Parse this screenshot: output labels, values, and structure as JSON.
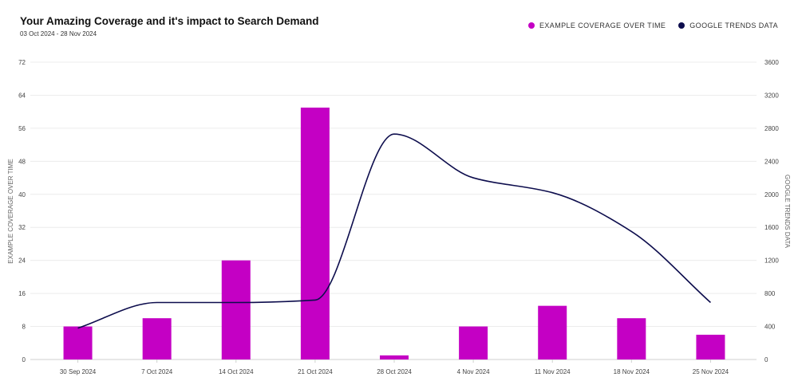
{
  "chart_data": {
    "type": "bar",
    "title": "Your Amazing Coverage and it's impact to Search Demand",
    "subtitle": "03 Oct 2024 - 28 Nov 2024",
    "categories": [
      "30 Sep 2024",
      "7 Oct 2024",
      "14 Oct 2024",
      "21 Oct 2024",
      "28 Oct 2024",
      "4 Nov 2024",
      "11 Nov 2024",
      "18 Nov 2024",
      "25 Nov 2024"
    ],
    "series": [
      {
        "name": "EXAMPLE COVERAGE OVER TIME",
        "type": "bar",
        "axis": "left",
        "color": "#c400c4",
        "values": [
          8,
          10,
          24,
          61,
          1,
          8,
          13,
          10,
          6
        ]
      },
      {
        "name": "GOOGLE TRENDS DATA",
        "type": "line",
        "axis": "right",
        "color": "#0d0d4d",
        "values": [
          380,
          690,
          690,
          720,
          2730,
          2200,
          2020,
          1550,
          690
        ]
      }
    ],
    "ylabel_left": "EXAMPLE COVERAGE OVER TIME",
    "ylabel_right": "GOOGLE TRENDS DATA",
    "ylim_left": [
      0,
      72
    ],
    "yticks_left": [
      0,
      8,
      16,
      24,
      32,
      40,
      48,
      56,
      64,
      72
    ],
    "ylim_right": [
      0,
      3600
    ],
    "yticks_right": [
      0,
      400,
      800,
      1200,
      1600,
      2000,
      2400,
      2800,
      3200,
      3600
    ],
    "grid": true,
    "legend_position": "top-right"
  }
}
